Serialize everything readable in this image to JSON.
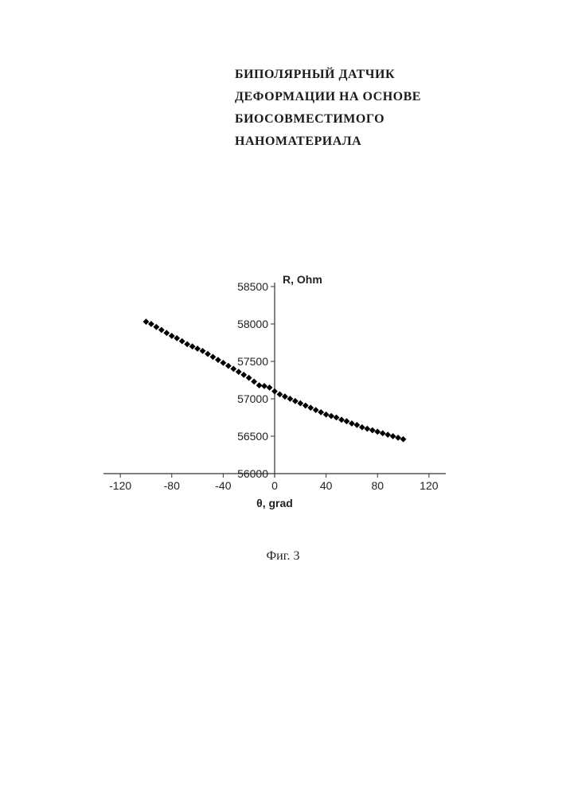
{
  "title_lines": [
    "БИПОЛЯРНЫЙ ДАТЧИК",
    "ДЕФОРМАЦИИ  НА ОСНОВЕ",
    "БИОСОВМЕСТИМОГО",
    "НАНОМАТЕРИАЛА"
  ],
  "caption": "Фиг. 3",
  "chart": {
    "type": "scatter",
    "ylabel": "R, Ohm",
    "xlabel": "θ, grad",
    "ylabel_fontsize": 14,
    "xlabel_fontsize": 14,
    "label_color": "#222222",
    "xlim": [
      -130,
      130
    ],
    "ylim": [
      56000,
      58500
    ],
    "xticks": [
      -120,
      -80,
      -40,
      0,
      40,
      80,
      120
    ],
    "yticks": [
      56000,
      56500,
      57000,
      57500,
      58000,
      58500
    ],
    "xtick_fontsize": 14,
    "ytick_fontsize": 14,
    "tick_color": "#333333",
    "axis_color": "#333333",
    "background_color": "#ffffff",
    "grid": false,
    "marker_color": "#000000",
    "marker_size": 5.5,
    "marker_shape": "diamond",
    "x": [
      -100,
      -96,
      -92,
      -88,
      -84,
      -80,
      -76,
      -72,
      -68,
      -64,
      -60,
      -56,
      -52,
      -48,
      -44,
      -40,
      -36,
      -32,
      -28,
      -24,
      -20,
      -16,
      -12,
      -8,
      -4,
      0,
      4,
      8,
      12,
      16,
      20,
      24,
      28,
      32,
      36,
      40,
      44,
      48,
      52,
      56,
      60,
      64,
      68,
      72,
      76,
      80,
      84,
      88,
      92,
      96,
      100
    ],
    "y": [
      58030,
      58000,
      57960,
      57920,
      57880,
      57840,
      57810,
      57770,
      57730,
      57700,
      57670,
      57640,
      57600,
      57560,
      57520,
      57480,
      57440,
      57400,
      57360,
      57320,
      57280,
      57230,
      57180,
      57170,
      57150,
      57100,
      57060,
      57030,
      57000,
      56970,
      56940,
      56910,
      56880,
      56850,
      56820,
      56790,
      56770,
      56750,
      56720,
      56700,
      56670,
      56650,
      56620,
      56600,
      56580,
      56560,
      56540,
      56520,
      56500,
      56480,
      56460
    ]
  }
}
